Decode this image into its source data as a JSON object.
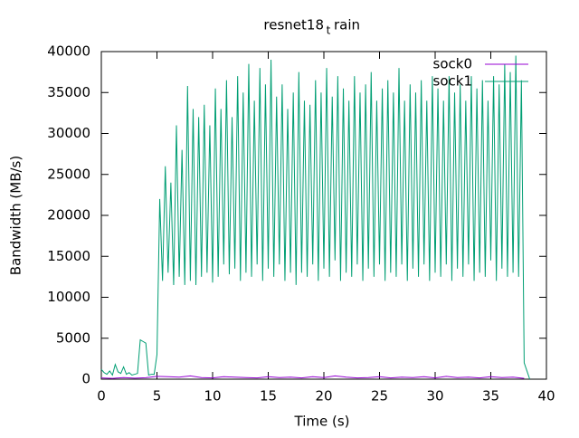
{
  "chart_data": {
    "type": "line",
    "title": [
      "resnet18",
      "t",
      "rain"
    ],
    "x_label": "Time (s)",
    "y_label": "Bandwidth (MB/s)",
    "xlim": [
      0,
      40
    ],
    "xticks": [
      0,
      5,
      10,
      15,
      20,
      25,
      30,
      35,
      40
    ],
    "ylim": [
      0,
      40000
    ],
    "yticks": [
      0,
      5000,
      10000,
      15000,
      20000,
      25000,
      30000,
      35000,
      40000
    ],
    "legend": "top-right",
    "series": [
      {
        "name": "sock0",
        "color": "#9400d3",
        "x": [
          0,
          1,
          2,
          3,
          4,
          5,
          6,
          7,
          8,
          9,
          10,
          11,
          12,
          13,
          14,
          15,
          16,
          17,
          18,
          19,
          20,
          21,
          22,
          23,
          24,
          25,
          26,
          27,
          28,
          29,
          30,
          31,
          32,
          33,
          34,
          35,
          36,
          37,
          38
        ],
        "values": [
          150,
          100,
          200,
          120,
          180,
          350,
          300,
          250,
          400,
          200,
          150,
          300,
          250,
          200,
          150,
          300,
          200,
          250,
          150,
          300,
          200,
          400,
          250,
          150,
          200,
          300,
          150,
          250,
          200,
          300,
          150,
          350,
          200,
          250,
          150,
          300,
          200,
          250,
          100
        ]
      },
      {
        "name": "sock1",
        "color": "#009e73",
        "x": [
          0,
          0.25,
          0.5,
          0.75,
          1,
          1.25,
          1.5,
          1.75,
          2,
          2.25,
          2.5,
          2.75,
          3,
          3.25,
          3.5,
          3.75,
          4,
          4.25,
          4.5,
          4.75,
          5,
          5.25,
          5.5,
          5.75,
          6,
          6.25,
          6.5,
          6.75,
          7,
          7.25,
          7.5,
          7.75,
          8,
          8.25,
          8.5,
          8.75,
          9,
          9.25,
          9.5,
          9.75,
          10,
          10.25,
          10.5,
          10.75,
          11,
          11.25,
          11.5,
          11.75,
          12,
          12.25,
          12.5,
          12.75,
          13,
          13.25,
          13.5,
          13.75,
          14,
          14.25,
          14.5,
          14.75,
          15,
          15.25,
          15.5,
          15.75,
          16,
          16.25,
          16.5,
          16.75,
          17,
          17.25,
          17.5,
          17.75,
          18,
          18.25,
          18.5,
          18.75,
          19,
          19.25,
          19.5,
          19.75,
          20,
          20.25,
          20.5,
          20.75,
          21,
          21.25,
          21.5,
          21.75,
          22,
          22.25,
          22.5,
          22.75,
          23,
          23.25,
          23.5,
          23.75,
          24,
          24.25,
          24.5,
          24.75,
          25,
          25.25,
          25.5,
          25.75,
          26,
          26.25,
          26.5,
          26.75,
          27,
          27.25,
          27.5,
          27.75,
          28,
          28.25,
          28.5,
          28.75,
          29,
          29.25,
          29.5,
          29.75,
          30,
          30.25,
          30.5,
          30.75,
          31,
          31.25,
          31.5,
          31.75,
          32,
          32.25,
          32.5,
          32.75,
          33,
          33.25,
          33.5,
          33.75,
          34,
          34.25,
          34.5,
          34.75,
          35,
          35.25,
          35.5,
          35.75,
          36,
          36.25,
          36.5,
          36.75,
          37,
          37.25,
          37.5,
          37.75,
          38,
          38.25,
          38.5
        ],
        "values": [
          1200,
          800,
          600,
          1000,
          500,
          1800,
          900,
          700,
          1500,
          600,
          800,
          500,
          600,
          700,
          4800,
          4600,
          4400,
          500,
          600,
          600,
          3000,
          22000,
          12000,
          26000,
          13000,
          24000,
          11500,
          31000,
          12500,
          28000,
          11500,
          35800,
          12000,
          33000,
          11500,
          32000,
          12500,
          33500,
          13000,
          31000,
          11800,
          35500,
          12500,
          33000,
          14000,
          36500,
          12800,
          32000,
          13500,
          37000,
          12000,
          35000,
          13000,
          38500,
          12500,
          34000,
          14000,
          38000,
          12000,
          36000,
          13500,
          39000,
          12500,
          34500,
          14000,
          36000,
          12000,
          33000,
          13000,
          35000,
          11500,
          37500,
          13000,
          34000,
          12500,
          33500,
          14000,
          36500,
          12000,
          35000,
          13500,
          38000,
          12500,
          34500,
          14500,
          37000,
          12000,
          35500,
          13000,
          34000,
          12500,
          37000,
          14000,
          35000,
          12000,
          36000,
          13500,
          37500,
          12500,
          34000,
          14000,
          35500,
          12000,
          36500,
          13000,
          35000,
          12500,
          38000,
          14000,
          34000,
          12000,
          36000,
          13500,
          35000,
          12500,
          36500,
          14000,
          34000,
          12000,
          37000,
          13000,
          35500,
          12500,
          34000,
          14000,
          37000,
          12000,
          35000,
          13500,
          36000,
          12500,
          34000,
          14000,
          37000,
          12000,
          35500,
          13000,
          36500,
          12500,
          34000,
          14500,
          37000,
          12000,
          36000,
          13500,
          38500,
          12500,
          37500,
          13000,
          39500,
          12500,
          36500,
          2000,
          1000,
          0
        ]
      }
    ]
  }
}
